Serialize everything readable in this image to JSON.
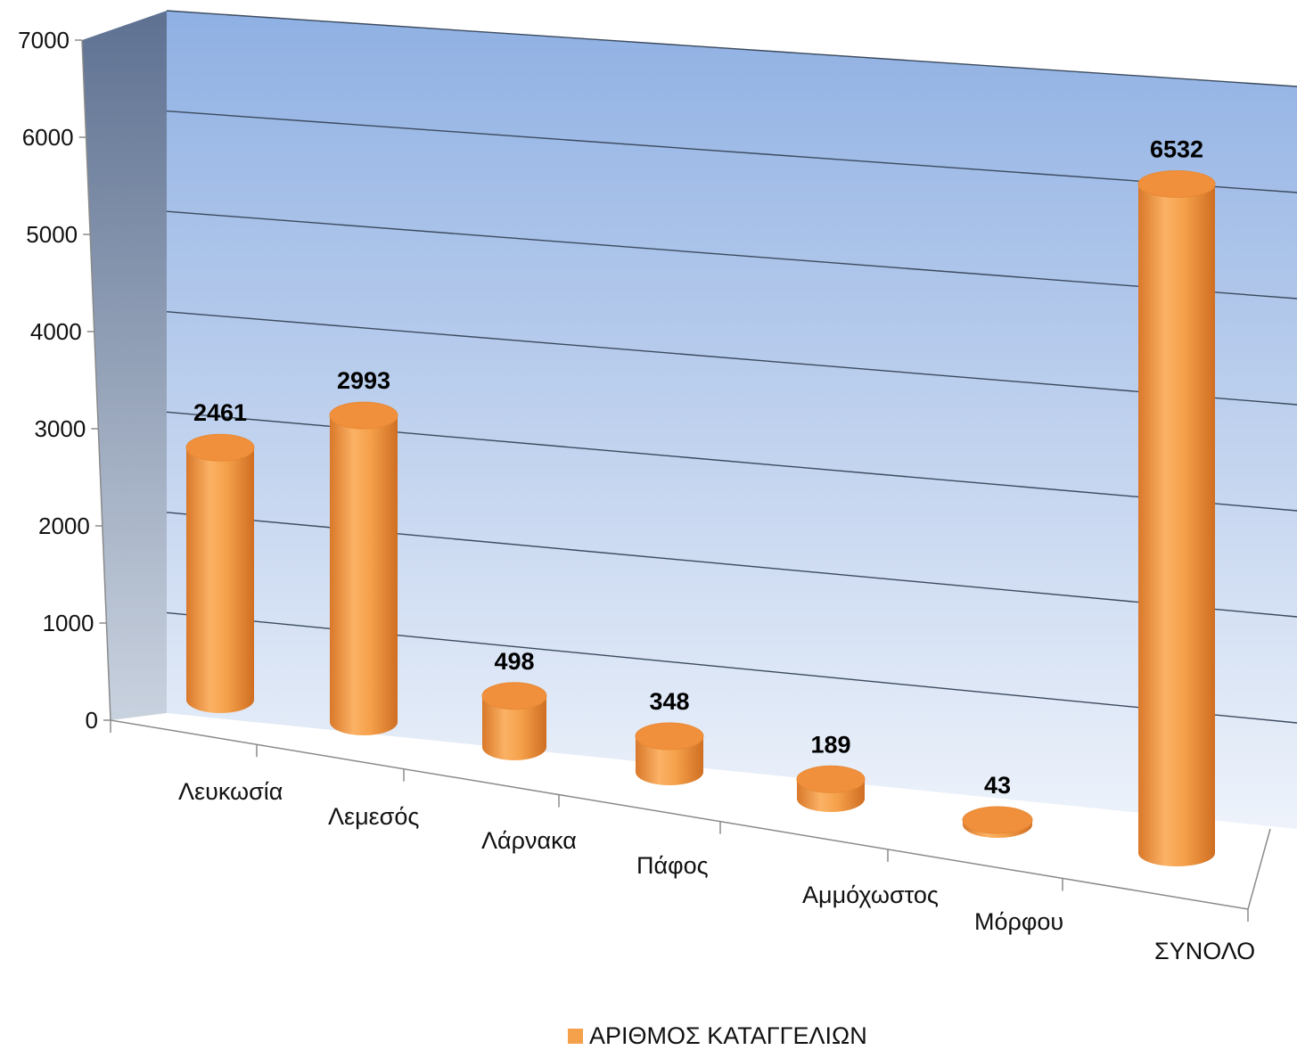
{
  "chart_data": {
    "type": "bar",
    "style": "3d-cylinder",
    "categories": [
      "Λευκωσία",
      "Λεμεσός",
      "Λάρνακα",
      "Πάφος",
      "Αμμόχωστος",
      "Μόρφου",
      "ΣΥΝΟΛΟ"
    ],
    "series": [
      {
        "name": "ΑΡΙΘΜΟΣ ΚΑΤΑΓΓΕΛΙΩΝ",
        "values": [
          2461,
          2993,
          498,
          348,
          189,
          43,
          6532
        ]
      }
    ],
    "value_labels": [
      "2461",
      "2993",
      "498",
      "348",
      "189",
      "43",
      "6532"
    ],
    "y_ticks": [
      "0",
      "1000",
      "2000",
      "3000",
      "4000",
      "5000",
      "6000",
      "7000"
    ],
    "ylim": [
      0,
      7000
    ],
    "grid": true,
    "legend_position": "bottom",
    "colors": {
      "bar": "#f5a04a",
      "bar_dark": "#d9782a",
      "bar_top": "#f08f3c",
      "wall_top": "#8fb0e3",
      "wall_bottom": "#eef3fb",
      "side_wall_top": "#5e7191",
      "side_wall_bottom": "#c9d2df",
      "gridline": "#3b4a5e"
    }
  }
}
